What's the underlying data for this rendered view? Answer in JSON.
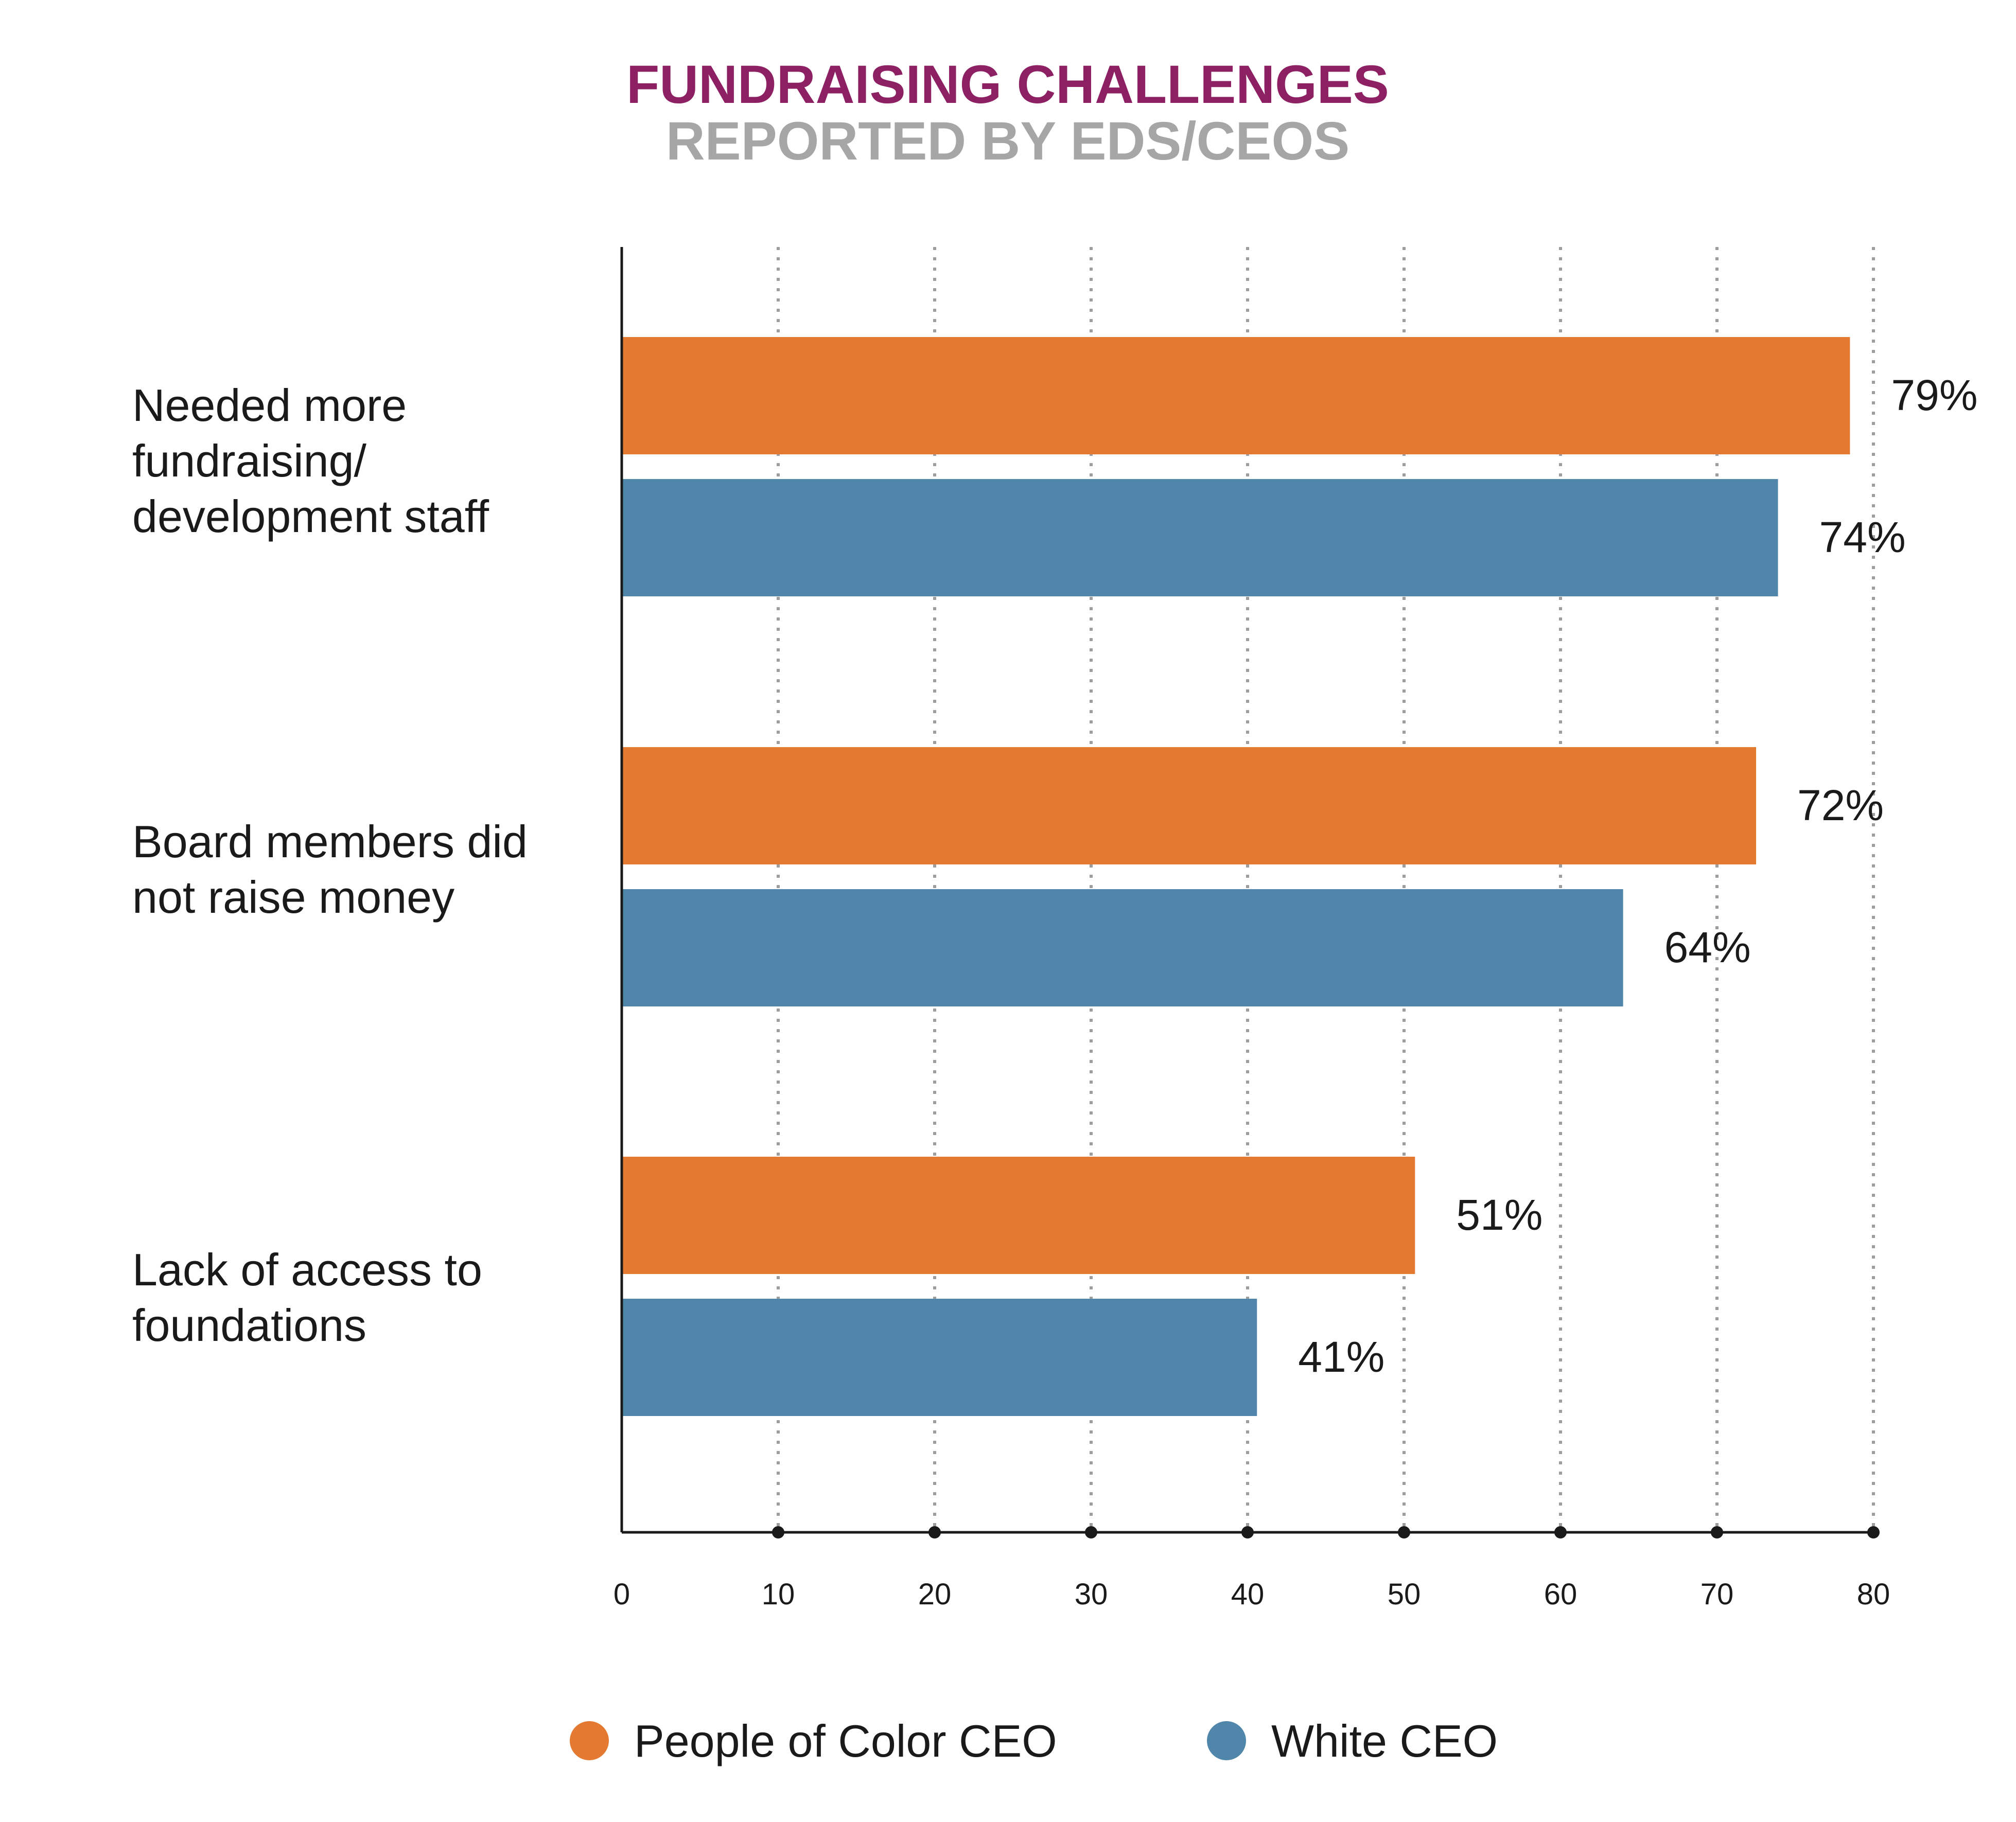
{
  "chart_data": {
    "type": "bar",
    "orientation": "horizontal",
    "title": "FUNDRAISING CHALLENGES",
    "subtitle": "REPORTED BY EDS/CEOS",
    "categories": [
      [
        "Needed more",
        "fundraising/",
        "development staff"
      ],
      [
        "Board members did",
        "not raise money"
      ],
      [
        "Lack of access to",
        "foundations"
      ]
    ],
    "series": [
      {
        "name": "People of Color CEO",
        "color": "#E47932",
        "values": [
          78.5,
          72.5,
          50.7
        ],
        "labels": [
          "79%",
          "72%",
          "51%"
        ]
      },
      {
        "name": "White CEO",
        "color": "#4F86AA",
        "values": [
          73.9,
          64,
          40.6
        ],
        "labels": [
          "74%",
          "64%",
          "41%"
        ]
      }
    ],
    "xlim": [
      0,
      80
    ],
    "xticks": [
      0,
      10,
      20,
      30,
      40,
      50,
      60,
      70,
      80
    ],
    "grid": "vertical dotted",
    "legend": "bottom",
    "title_color": "#8C2063",
    "subtitle_color": "#A6A6A6"
  }
}
